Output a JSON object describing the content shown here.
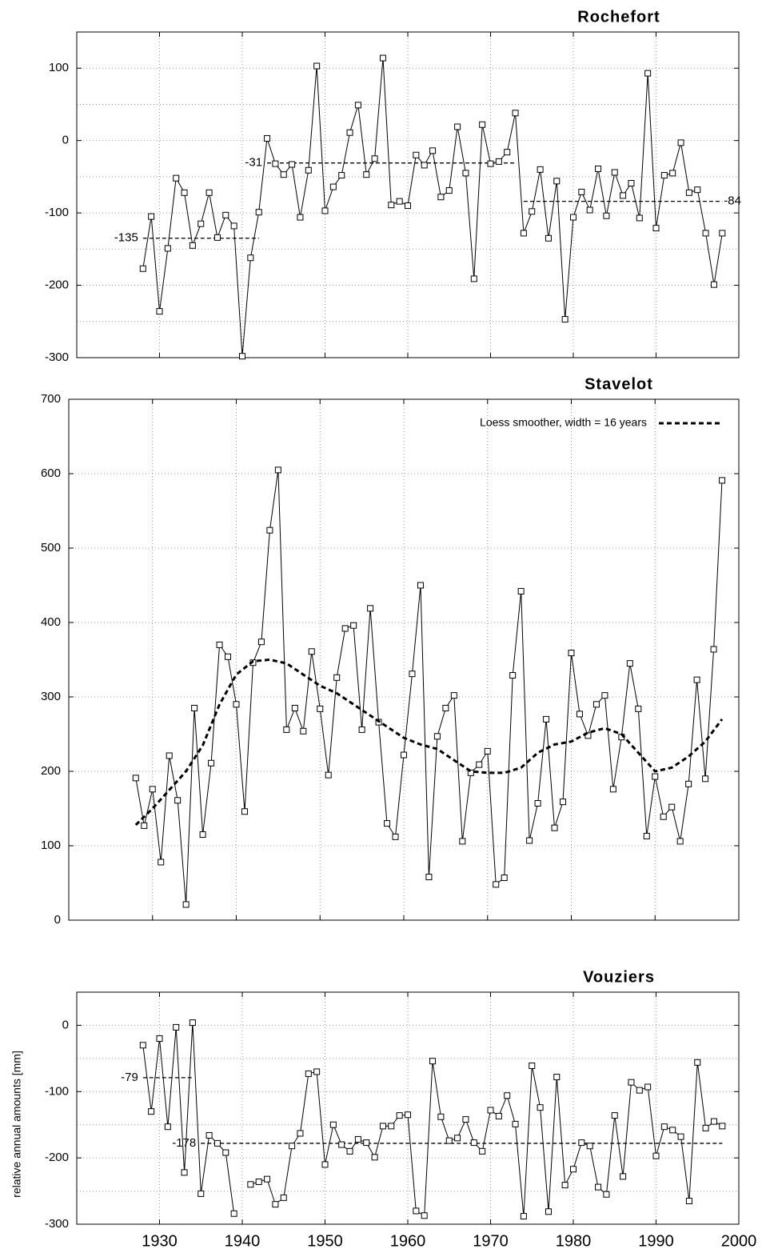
{
  "chart_data": [
    {
      "type": "line",
      "title": "Rochefort",
      "x": [
        1928,
        1929,
        1930,
        1931,
        1932,
        1933,
        1934,
        1935,
        1936,
        1937,
        1938,
        1939,
        1940,
        1941,
        1942,
        1943,
        1944,
        1945,
        1946,
        1947,
        1948,
        1949,
        1950,
        1951,
        1952,
        1953,
        1954,
        1955,
        1956,
        1957,
        1958,
        1959,
        1960,
        1961,
        1962,
        1963,
        1964,
        1965,
        1966,
        1967,
        1968,
        1969,
        1970,
        1971,
        1972,
        1973,
        1974,
        1975,
        1976,
        1977,
        1978,
        1979,
        1980,
        1981,
        1982,
        1983,
        1984,
        1985,
        1986,
        1987,
        1988,
        1989,
        1990,
        1991,
        1992,
        1993,
        1994,
        1995,
        1996,
        1997,
        1998
      ],
      "series": [
        {
          "color": "#000000",
          "style": "solid",
          "markers": true,
          "values": [
            -177,
            -105,
            -236,
            -149,
            -52,
            -72,
            -145,
            -115,
            -72,
            -134,
            -103,
            -118,
            -298,
            -162,
            -99,
            3,
            -32,
            -47,
            -33,
            -106,
            -41,
            103,
            -97,
            -64,
            -48,
            11,
            49,
            -47,
            -25,
            114,
            -89,
            -84,
            -90,
            -20,
            -34,
            -14,
            -78,
            -69,
            19,
            -45,
            -191,
            22,
            -32,
            -29,
            -16,
            38,
            -128,
            -98,
            -40,
            -135,
            -56,
            -247,
            -106,
            -71,
            -96,
            -39,
            -104,
            -44,
            -76,
            -59,
            -107,
            93,
            -121,
            -48,
            -45,
            -3,
            -72,
            -68,
            -128,
            -199,
            -128
          ]
        }
      ],
      "mean_lines": [
        {
          "value": -135,
          "x": [
            1928,
            1942
          ],
          "label_side": "left"
        },
        {
          "value": -31,
          "x": [
            1943,
            1973
          ],
          "label_side": "left"
        },
        {
          "value": -84,
          "x": [
            1974,
            1998
          ],
          "label_side": "right"
        }
      ],
      "xlim": [
        1920,
        2000
      ],
      "xticks": [
        1930,
        1940,
        1950,
        1960,
        1970,
        1980,
        1990
      ],
      "show_xtick_labels": false,
      "ylim": [
        -300,
        150
      ],
      "yticks": [
        -300,
        -200,
        -100,
        0,
        100
      ],
      "yminor": [
        -250,
        -150,
        -50,
        50
      ],
      "grid": true
    },
    {
      "type": "line",
      "title": "Stavelot",
      "x": [
        1928,
        1929,
        1930,
        1931,
        1932,
        1933,
        1934,
        1935,
        1936,
        1937,
        1938,
        1939,
        1940,
        1941,
        1942,
        1943,
        1944,
        1945,
        1946,
        1947,
        1948,
        1949,
        1950,
        1951,
        1952,
        1953,
        1954,
        1955,
        1956,
        1957,
        1958,
        1959,
        1960,
        1961,
        1962,
        1963,
        1964,
        1965,
        1966,
        1967,
        1968,
        1969,
        1970,
        1971,
        1972,
        1973,
        1974,
        1975,
        1976,
        1977,
        1978,
        1979,
        1980,
        1981,
        1982,
        1983,
        1984,
        1985,
        1986,
        1987,
        1988,
        1989,
        1990,
        1991,
        1992,
        1993,
        1994,
        1995,
        1996,
        1997,
        1998
      ],
      "series": [
        {
          "color": "#000000",
          "style": "solid",
          "markers": true,
          "values": [
            191,
            127,
            176,
            78,
            221,
            161,
            21,
            285,
            115,
            211,
            370,
            354,
            290,
            146,
            346,
            374,
            524,
            605,
            256,
            285,
            254,
            361,
            284,
            195,
            326,
            392,
            396,
            256,
            419,
            266,
            130,
            112,
            222,
            331,
            450,
            58,
            247,
            285,
            302,
            106,
            198,
            209,
            227,
            48,
            57,
            329,
            442,
            107,
            157,
            270,
            124,
            159,
            359,
            277,
            248,
            290,
            302,
            176,
            246,
            345,
            284,
            113,
            193,
            139,
            152,
            106,
            183,
            323,
            190,
            364,
            591
          ]
        },
        {
          "name": "Loess smoother, width = 16 years",
          "color": "#000000",
          "style": "dashed",
          "markers": false,
          "x": [
            1928,
            1930,
            1932,
            1934,
            1936,
            1938,
            1940,
            1942,
            1944,
            1946,
            1948,
            1950,
            1952,
            1954,
            1956,
            1958,
            1960,
            1962,
            1964,
            1966,
            1968,
            1970,
            1972,
            1974,
            1976,
            1978,
            1980,
            1982,
            1984,
            1986,
            1988,
            1990,
            1992,
            1994,
            1996,
            1998
          ],
          "values": [
            128,
            150,
            175,
            200,
            235,
            290,
            330,
            348,
            350,
            345,
            330,
            315,
            305,
            290,
            275,
            260,
            245,
            236,
            230,
            215,
            200,
            198,
            198,
            205,
            225,
            236,
            240,
            252,
            258,
            250,
            225,
            200,
            205,
            220,
            240,
            270
          ]
        }
      ],
      "legend": "top-right",
      "xlim": [
        1920,
        2000
      ],
      "xticks": [
        1930,
        1940,
        1950,
        1960,
        1970,
        1980,
        1990
      ],
      "show_xtick_labels": false,
      "ylim": [
        0,
        700
      ],
      "yticks": [
        0,
        100,
        200,
        300,
        400,
        500,
        600,
        700
      ],
      "grid": true
    },
    {
      "type": "line",
      "title": "Vouziers",
      "ylabel": "relative annual amounts [mm]",
      "x": [
        1928,
        1929,
        1930,
        1931,
        1932,
        1933,
        1934,
        1935,
        1936,
        1937,
        1938,
        1939,
        1940,
        1941,
        1942,
        1943,
        1944,
        1945,
        1946,
        1947,
        1948,
        1949,
        1950,
        1951,
        1952,
        1953,
        1954,
        1955,
        1956,
        1957,
        1958,
        1959,
        1960,
        1961,
        1962,
        1963,
        1964,
        1965,
        1966,
        1967,
        1968,
        1969,
        1970,
        1971,
        1972,
        1973,
        1974,
        1975,
        1976,
        1977,
        1978,
        1979,
        1980,
        1981,
        1982,
        1983,
        1984,
        1985,
        1986,
        1987,
        1988,
        1989,
        1990,
        1991,
        1992,
        1993,
        1994,
        1995,
        1996,
        1997,
        1998
      ],
      "series": [
        {
          "color": "#000000",
          "style": "solid",
          "markers": true,
          "values": [
            -30,
            -130,
            -20,
            -153,
            -3,
            -222,
            4,
            -254,
            -166,
            -178,
            -192,
            -284,
            null,
            -240,
            -236,
            -232,
            -270,
            -260,
            -182,
            -163,
            -73,
            -70,
            -210,
            -150,
            -180,
            -190,
            -172,
            -177,
            -199,
            -152,
            -152,
            -136,
            -135,
            -280,
            -287,
            -54,
            -138,
            -174,
            -170,
            -142,
            -177,
            -190,
            -128,
            -137,
            -106,
            -149,
            -288,
            -61,
            -124,
            -281,
            -78,
            -241,
            -217,
            -177,
            -182,
            -244,
            -255,
            -136,
            -228,
            -86,
            -98,
            -93,
            -197,
            -153,
            -158,
            -168,
            -265,
            -56,
            -155,
            -145,
            -152
          ]
        }
      ],
      "mean_lines": [
        {
          "value": -79,
          "x": [
            1928,
            1934
          ],
          "label_side": "left"
        },
        {
          "value": -178,
          "x": [
            1935,
            1998
          ],
          "label_side": "left"
        }
      ],
      "xlim": [
        1920,
        2000
      ],
      "xticks": [
        1930,
        1940,
        1950,
        1960,
        1970,
        1980,
        1990,
        2000
      ],
      "show_xtick_labels": true,
      "ylim": [
        -300,
        50
      ],
      "yticks": [
        -300,
        -200,
        -100,
        0
      ],
      "yminor": [
        -250,
        -150,
        -50
      ],
      "grid": true
    }
  ]
}
